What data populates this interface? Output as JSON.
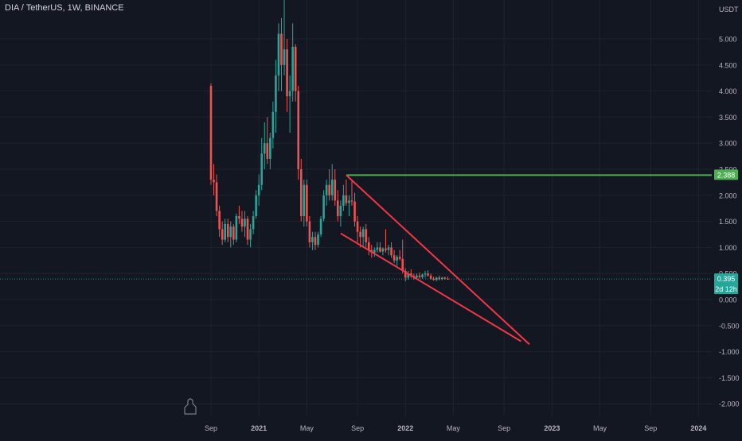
{
  "header": {
    "title": "DIA / TetherUS, 1W, BINANCE"
  },
  "colors": {
    "background": "#131722",
    "grid": "#1e222d",
    "up": "#26a69a",
    "down": "#ef5350",
    "text": "#b2b5be",
    "horizontal_line": "#4caf50",
    "trendline": "#f23645"
  },
  "chart_data": {
    "type": "candlestick",
    "title": "DIA / TetherUS, 1W, BINANCE",
    "ylabel": "USDT",
    "ylim": [
      -2.0,
      5.0
    ],
    "grid": true,
    "price_axis": {
      "ticks": [
        5.0,
        4.5,
        4.0,
        3.5,
        3.0,
        2.5,
        2.0,
        1.5,
        1.0,
        0.5,
        0.0,
        -0.5,
        -1.0,
        -1.5,
        -2.0
      ],
      "labels": [
        "5.000",
        "4.500",
        "4.000",
        "3.500",
        "3.000",
        "2.500",
        "2.000",
        "1.500",
        "1.000",
        "0.500",
        "0.000",
        "-0.500",
        "-1.000",
        "-1.500",
        "-2.000"
      ]
    },
    "time_axis": {
      "labels": [
        "Sep",
        "2021",
        "May",
        "Sep",
        "2022",
        "May",
        "Sep",
        "2023",
        "May",
        "Sep",
        "2024"
      ],
      "week_index": [
        0,
        17,
        34,
        52,
        69,
        86,
        104,
        121,
        138,
        156,
        173
      ]
    },
    "candles_ohlc": [
      [
        4.1,
        4.15,
        2.2,
        2.3
      ],
      [
        2.3,
        2.6,
        2.0,
        2.25
      ],
      [
        2.25,
        2.4,
        1.6,
        1.7
      ],
      [
        1.7,
        1.8,
        1.2,
        1.35
      ],
      [
        1.35,
        1.5,
        1.05,
        1.15
      ],
      [
        1.15,
        1.55,
        1.1,
        1.45
      ],
      [
        1.45,
        1.55,
        1.1,
        1.2
      ],
      [
        1.2,
        1.5,
        1.0,
        1.4
      ],
      [
        1.4,
        1.45,
        1.05,
        1.15
      ],
      [
        1.15,
        1.65,
        1.1,
        1.6
      ],
      [
        1.6,
        1.8,
        1.45,
        1.55
      ],
      [
        1.55,
        1.7,
        1.3,
        1.4
      ],
      [
        1.4,
        1.7,
        1.2,
        1.55
      ],
      [
        1.55,
        1.6,
        1.05,
        1.15
      ],
      [
        1.15,
        1.45,
        1.0,
        1.35
      ],
      [
        1.35,
        1.7,
        1.25,
        1.6
      ],
      [
        1.6,
        2.1,
        1.55,
        2.0
      ],
      [
        2.0,
        2.4,
        1.8,
        2.2
      ],
      [
        2.2,
        3.1,
        2.1,
        2.8
      ],
      [
        2.8,
        3.4,
        2.5,
        3.0
      ],
      [
        3.0,
        3.5,
        2.6,
        2.7
      ],
      [
        2.7,
        3.2,
        2.5,
        3.1
      ],
      [
        3.1,
        3.8,
        2.9,
        3.6
      ],
      [
        3.6,
        4.6,
        3.2,
        4.3
      ],
      [
        4.3,
        5.3,
        4.0,
        5.1
      ],
      [
        5.1,
        5.4,
        4.0,
        4.5
      ],
      [
        4.5,
        5.8,
        4.3,
        4.8
      ],
      [
        4.8,
        5.0,
        3.6,
        3.9
      ],
      [
        3.9,
        4.3,
        3.2,
        4.0
      ],
      [
        4.0,
        5.3,
        3.8,
        4.85
      ],
      [
        4.85,
        4.9,
        3.8,
        4.0
      ],
      [
        4.0,
        4.1,
        2.3,
        2.5
      ],
      [
        2.5,
        2.7,
        1.5,
        1.6
      ],
      [
        1.6,
        2.3,
        1.4,
        2.2
      ],
      [
        2.2,
        2.3,
        1.4,
        1.5
      ],
      [
        1.5,
        1.6,
        1.0,
        1.1
      ],
      [
        1.1,
        1.3,
        0.95,
        1.2
      ],
      [
        1.2,
        1.3,
        0.95,
        1.05
      ],
      [
        1.05,
        1.3,
        1.0,
        1.25
      ],
      [
        1.25,
        1.6,
        1.2,
        1.55
      ],
      [
        1.55,
        2.1,
        1.5,
        2.0
      ],
      [
        2.0,
        2.3,
        1.8,
        2.2
      ],
      [
        2.2,
        2.5,
        1.9,
        2.0
      ],
      [
        2.0,
        2.6,
        1.9,
        2.3
      ],
      [
        2.3,
        2.5,
        1.8,
        1.9
      ],
      [
        1.9,
        2.1,
        1.5,
        1.6
      ],
      [
        1.6,
        1.9,
        1.4,
        1.8
      ],
      [
        1.8,
        2.2,
        1.7,
        2.0
      ],
      [
        2.0,
        2.3,
        1.8,
        1.85
      ],
      [
        1.85,
        2.0,
        1.6,
        1.9
      ],
      [
        1.9,
        2.3,
        1.8,
        1.88
      ],
      [
        1.88,
        2.05,
        1.4,
        1.5
      ],
      [
        1.5,
        1.6,
        1.1,
        1.3
      ],
      [
        1.3,
        1.4,
        1.0,
        1.2
      ],
      [
        1.2,
        1.4,
        1.0,
        1.35
      ],
      [
        1.35,
        1.45,
        1.0,
        1.1
      ],
      [
        1.1,
        1.2,
        0.85,
        0.95
      ],
      [
        0.95,
        1.05,
        0.8,
        0.9
      ],
      [
        0.9,
        1.0,
        0.82,
        0.95
      ],
      [
        0.95,
        1.1,
        0.9,
        1.0
      ],
      [
        1.0,
        1.1,
        0.9,
        0.92
      ],
      [
        0.92,
        1.0,
        0.85,
        0.98
      ],
      [
        0.98,
        1.35,
        0.9,
        0.95
      ],
      [
        0.95,
        1.05,
        0.85,
        1.0
      ],
      [
        1.0,
        1.1,
        0.8,
        0.85
      ],
      [
        0.85,
        0.95,
        0.7,
        0.75
      ],
      [
        0.75,
        0.85,
        0.65,
        0.82
      ],
      [
        0.82,
        0.95,
        0.75,
        0.78
      ],
      [
        0.78,
        1.15,
        0.5,
        0.55
      ],
      [
        0.55,
        0.6,
        0.35,
        0.42
      ],
      [
        0.42,
        0.55,
        0.38,
        0.5
      ],
      [
        0.5,
        0.58,
        0.42,
        0.45
      ],
      [
        0.45,
        0.5,
        0.38,
        0.42
      ],
      [
        0.42,
        0.5,
        0.38,
        0.46
      ],
      [
        0.46,
        0.52,
        0.4,
        0.43
      ],
      [
        0.43,
        0.5,
        0.4,
        0.48
      ],
      [
        0.48,
        0.55,
        0.42,
        0.5
      ],
      [
        0.5,
        0.56,
        0.44,
        0.46
      ],
      [
        0.46,
        0.5,
        0.38,
        0.4
      ],
      [
        0.4,
        0.44,
        0.36,
        0.38
      ],
      [
        0.38,
        0.44,
        0.35,
        0.42
      ],
      [
        0.42,
        0.46,
        0.37,
        0.39
      ],
      [
        0.39,
        0.44,
        0.37,
        0.42
      ],
      [
        0.42,
        0.44,
        0.38,
        0.4
      ],
      [
        0.4,
        0.44,
        0.38,
        0.395
      ]
    ],
    "current_price": {
      "value": 0.395,
      "label": "0.395",
      "countdown": "2d 12h"
    },
    "horizontal_line": {
      "value": 2.388,
      "label": "2.388"
    },
    "trendlines": [
      {
        "from": {
          "week": 48,
          "price": 2.388
        },
        "to": {
          "week": 113,
          "price": -0.86
        }
      },
      {
        "from": {
          "week": 46,
          "price": 1.27
        },
        "to": {
          "week": 110,
          "price": -0.8
        }
      }
    ]
  }
}
